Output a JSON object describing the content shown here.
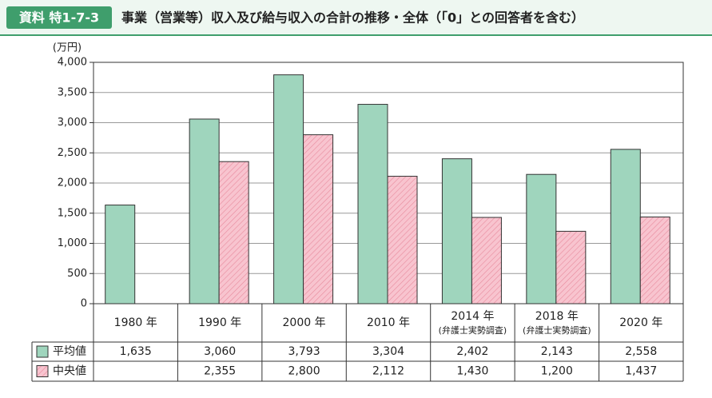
{
  "chart_data": {
    "type": "bar",
    "label": "資料 特1-7-3",
    "title": "事業（営業等）収入及び給与収入の合計の推移・全体（「0」との回答者を含む）",
    "y_unit": "(万円)",
    "categories": [
      "1980 年",
      "1990 年",
      "2000 年",
      "2010 年",
      "2014 年",
      "2018 年",
      "2020 年"
    ],
    "category_notes": [
      null,
      null,
      null,
      null,
      "(弁護士実勢調査)",
      "(弁護士実勢調査)",
      null
    ],
    "series": [
      {
        "name": "平均値",
        "color": "#9fd5bd",
        "hatch": false,
        "values": [
          1635,
          3060,
          3793,
          3304,
          2402,
          2143,
          2558
        ],
        "value_labels": [
          "1,635",
          "3,060",
          "3,793",
          "3,304",
          "2,402",
          "2,143",
          "2,558"
        ]
      },
      {
        "name": "中央値",
        "color": "#f8c4cf",
        "hatch": true,
        "values": [
          null,
          2355,
          2800,
          2112,
          1430,
          1200,
          1437
        ],
        "value_labels": [
          null,
          "2,355",
          "2,800",
          "2,112",
          "1,430",
          "1,200",
          "1,437"
        ]
      }
    ],
    "ylim": [
      0,
      4000
    ],
    "yticks": [
      0,
      500,
      {
        "value": 1000,
        "label": "1,000"
      },
      {
        "value": 1500,
        "label": "1,500"
      },
      {
        "value": 2000,
        "label": "2,000"
      },
      {
        "value": 2500,
        "label": "2,500"
      },
      {
        "value": 3000,
        "label": "3,000"
      },
      {
        "value": 3500,
        "label": "3,500"
      },
      {
        "value": 4000,
        "label": "4,000"
      }
    ],
    "grid": true
  }
}
